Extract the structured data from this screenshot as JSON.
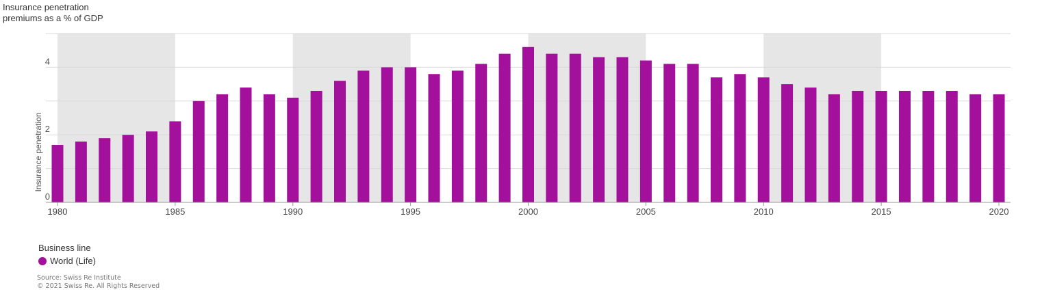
{
  "title_lines": [
    "Insurance penetration",
    "premiums as a % of GDP"
  ],
  "legend": {
    "title": "Business line",
    "items": [
      {
        "label": "World (Life)",
        "color": "#a3109b"
      }
    ]
  },
  "source": [
    "Source: Swiss Re Institute",
    "© 2021 Swiss Re. All Rights Reserved"
  ],
  "chart_data": {
    "type": "bar",
    "ylabel": "Insurance penetration",
    "ylim": [
      0,
      5
    ],
    "yticks": [
      0,
      2,
      4
    ],
    "gridlines": [
      0,
      1,
      2,
      3,
      4,
      5
    ],
    "xlim": [
      1980,
      2020
    ],
    "xticks": [
      1980,
      1985,
      1990,
      1995,
      2000,
      2005,
      2010,
      2015,
      2020
    ],
    "shaded_periods": [
      [
        1980,
        1985
      ],
      [
        1990,
        1995
      ],
      [
        2000,
        2005
      ],
      [
        2010,
        2015
      ]
    ],
    "colors": {
      "bar": "#a3109b",
      "shade": "#e6e6e6",
      "grid": "#d9d9d9",
      "axis": "#999999"
    },
    "series": [
      {
        "name": "World (Life)",
        "x": [
          1980,
          1981,
          1982,
          1983,
          1984,
          1985,
          1986,
          1987,
          1988,
          1989,
          1990,
          1991,
          1992,
          1993,
          1994,
          1995,
          1996,
          1997,
          1998,
          1999,
          2000,
          2001,
          2002,
          2003,
          2004,
          2005,
          2006,
          2007,
          2008,
          2009,
          2010,
          2011,
          2012,
          2013,
          2014,
          2015,
          2016,
          2017,
          2018,
          2019,
          2020
        ],
        "values": [
          1.7,
          1.8,
          1.9,
          2.0,
          2.1,
          2.4,
          3.0,
          3.2,
          3.4,
          3.2,
          3.1,
          3.3,
          3.6,
          3.9,
          4.0,
          4.0,
          3.8,
          3.9,
          4.1,
          4.4,
          4.6,
          4.4,
          4.4,
          4.3,
          4.3,
          4.2,
          4.1,
          4.1,
          3.7,
          3.8,
          3.7,
          3.5,
          3.4,
          3.2,
          3.3,
          3.3,
          3.3,
          3.3,
          3.3,
          3.2,
          3.2
        ]
      }
    ]
  }
}
